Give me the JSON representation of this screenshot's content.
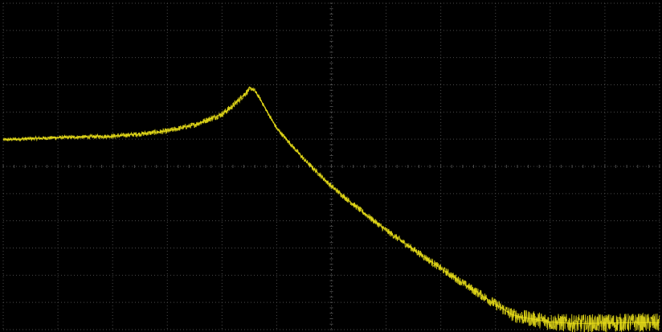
{
  "chart_data": {
    "type": "line",
    "title": "",
    "xlabel": "",
    "ylabel": "",
    "grid": true,
    "grid_divisions": {
      "x": 12,
      "y": 12
    },
    "grid_minor_divisions": {
      "x": 5,
      "y": 5
    },
    "xlim": [
      0,
      12
    ],
    "ylim": [
      -6,
      6
    ],
    "series": [
      {
        "x": [
          0,
          1,
          2,
          2.5,
          3,
          3.5,
          4,
          4.2,
          4.4,
          4.5,
          4.55,
          4.6,
          4.7,
          4.8,
          5,
          5.5,
          6,
          6.5,
          7,
          7.5,
          8,
          8.5,
          9,
          9.3,
          9.5,
          10,
          10.5,
          11,
          11.5,
          12
        ],
        "y": [
          0.98,
          1.06,
          1.11,
          1.19,
          1.3,
          1.53,
          1.92,
          2.23,
          2.63,
          2.83,
          2.86,
          2.78,
          2.47,
          2.1,
          1.4,
          0.26,
          -0.73,
          -1.56,
          -2.35,
          -3.05,
          -3.75,
          -4.42,
          -5.07,
          -5.45,
          -5.55,
          -5.72,
          -5.78,
          -5.76,
          -5.74,
          -5.75
        ],
        "noise": [
          0.07,
          0.07,
          0.08,
          0.09,
          0.1,
          0.1,
          0.12,
          0.12,
          0.12,
          0.1,
          0.08,
          0.08,
          0.07,
          0.07,
          0.08,
          0.09,
          0.1,
          0.11,
          0.12,
          0.13,
          0.14,
          0.16,
          0.2,
          0.24,
          0.28,
          0.32,
          0.34,
          0.34,
          0.34,
          0.34
        ]
      }
    ]
  },
  "colors": {
    "background": "#000000",
    "grid": "#4a4a4a",
    "trace": "#f5ea1a"
  }
}
